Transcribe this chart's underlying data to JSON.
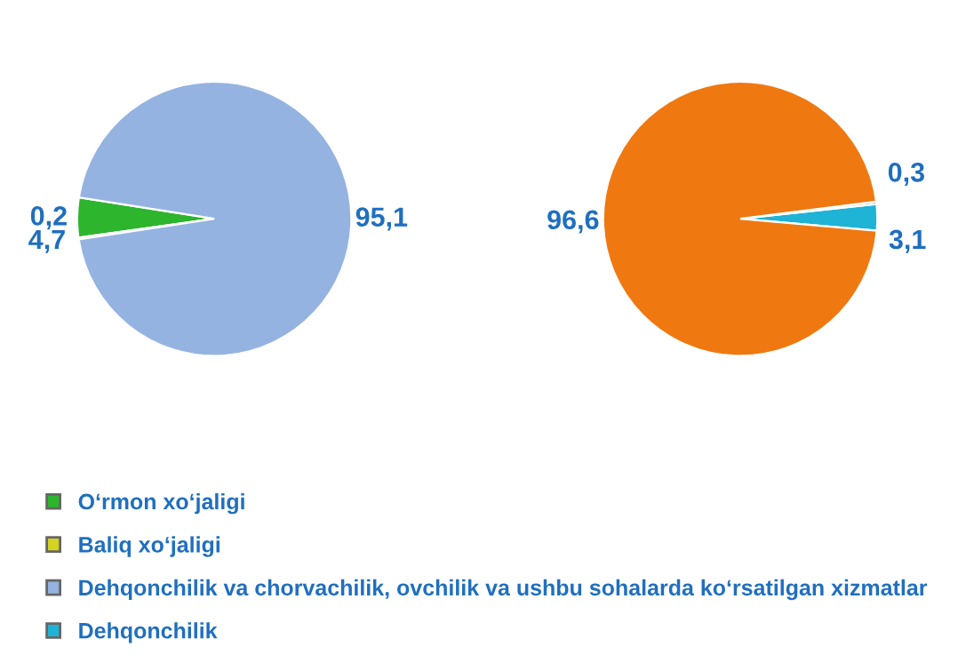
{
  "chart_data": [
    {
      "type": "pie",
      "categories": [
        "O‘rmon xo‘jaligi",
        "Baliq xo‘jaligi",
        "Dehqonchilik va chorvachilik, ovchilik va ushbu sohalarda ko‘rsatilgan xizmatlar"
      ],
      "values": [
        4.7,
        0.2,
        95.1
      ],
      "colors": [
        "#2db52d",
        "#d4d420",
        "#95b3e0"
      ],
      "value_labels": [
        "4,7",
        "0,2",
        "95,1"
      ],
      "legend": "bottom"
    },
    {
      "type": "pie",
      "categories": [
        "Dehqonchilik",
        null,
        null
      ],
      "values": [
        3.1,
        0.3,
        96.6
      ],
      "colors": [
        "#1fb3d6",
        "#8fa0b8",
        "#f07810"
      ],
      "value_labels": [
        "3,1",
        "0,3",
        "96,6"
      ]
    }
  ]
}
